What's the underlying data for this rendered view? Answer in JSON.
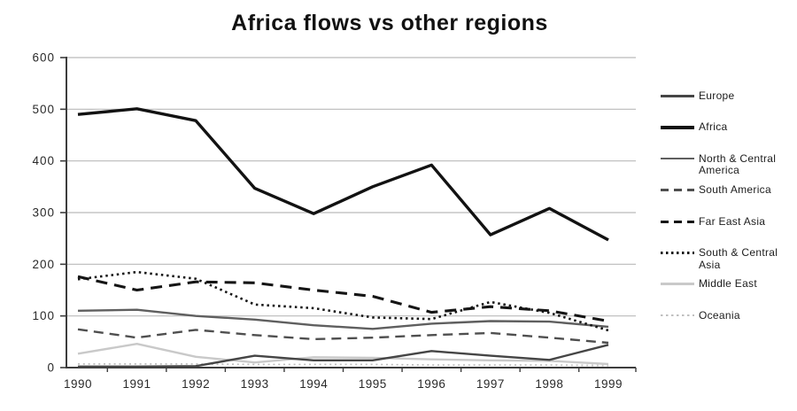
{
  "title": "Africa flows vs other regions",
  "colors": {
    "background": "#ffffff",
    "grid": "#bababa",
    "axis": "#3d3d3d",
    "tick_text": "#2a2a2a",
    "title_text": "#111111"
  },
  "chart_data": {
    "type": "line",
    "title": "Africa flows vs other regions",
    "xlabel": "",
    "ylabel": "",
    "x_categories": [
      "1990",
      "1991",
      "1992",
      "1993",
      "1994",
      "1995",
      "1996",
      "1997",
      "1998",
      "1999"
    ],
    "ylim": [
      0,
      600
    ],
    "y_ticks": [
      0,
      100,
      200,
      300,
      400,
      500,
      600
    ],
    "grid": true,
    "legend_position": "right",
    "series": [
      {
        "name": "Europe",
        "color": "#454545",
        "width": 2.4,
        "pattern": "solid",
        "dash": "",
        "values": [
          2,
          2,
          3,
          23,
          14,
          14,
          32,
          23,
          15,
          44
        ]
      },
      {
        "name": "Africa",
        "color": "#121212",
        "width": 3.4,
        "pattern": "solid",
        "dash": "",
        "values": [
          490,
          501,
          478,
          347,
          298,
          350,
          392,
          257,
          308,
          247
        ]
      },
      {
        "name": "North & Central America",
        "color": "#5f5f5f",
        "width": 2.4,
        "pattern": "solid",
        "dash": "",
        "values": [
          110,
          112,
          100,
          93,
          82,
          75,
          85,
          90,
          89,
          79
        ]
      },
      {
        "name": "South America",
        "color": "#4f4f4f",
        "width": 2.4,
        "pattern": "dashed",
        "dash": "11 7",
        "values": [
          74,
          58,
          73,
          63,
          55,
          58,
          63,
          67,
          58,
          48
        ]
      },
      {
        "name": "Far East Asia",
        "color": "#151515",
        "width": 3.1,
        "pattern": "dashed",
        "dash": "13 8",
        "values": [
          176,
          150,
          166,
          164,
          150,
          138,
          107,
          118,
          110,
          90
        ]
      },
      {
        "name": "South & Central Asia",
        "color": "#151515",
        "width": 2.6,
        "pattern": "dotted",
        "dash": "2.5 3.8",
        "values": [
          171,
          185,
          172,
          122,
          115,
          97,
          94,
          127,
          106,
          72
        ]
      },
      {
        "name": "Middle East",
        "color": "#c9c9c9",
        "width": 2.4,
        "pattern": "solid",
        "dash": "",
        "values": [
          27,
          46,
          21,
          10,
          20,
          19,
          16,
          14,
          13,
          7
        ]
      },
      {
        "name": "Oceania",
        "color": "#bfbfbf",
        "width": 1.8,
        "pattern": "dotted",
        "dash": "2 3.8",
        "values": [
          7,
          7,
          7,
          6,
          6,
          6,
          5,
          5,
          5,
          4
        ]
      }
    ],
    "z_order": [
      "Oceania",
      "Middle East",
      "South America",
      "North & Central America",
      "Europe",
      "South & Central Asia",
      "Far East Asia",
      "Africa"
    ]
  }
}
